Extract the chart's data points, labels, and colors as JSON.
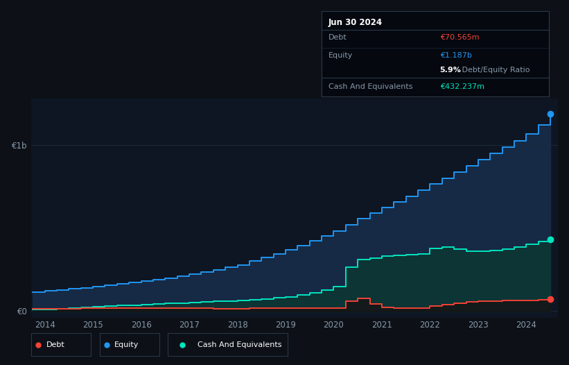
{
  "bg_color": "#0d1117",
  "plot_bg_color": "#0e1623",
  "grid_color": "#1e2d3d",
  "xlabel_color": "#8899aa",
  "y1b_label": "€1b",
  "y0_label": "€0",
  "years": [
    2013.75,
    2014.0,
    2014.25,
    2014.5,
    2014.75,
    2015.0,
    2015.25,
    2015.5,
    2015.75,
    2016.0,
    2016.25,
    2016.5,
    2016.75,
    2017.0,
    2017.25,
    2017.5,
    2017.75,
    2018.0,
    2018.25,
    2018.5,
    2018.75,
    2019.0,
    2019.25,
    2019.5,
    2019.75,
    2020.0,
    2020.25,
    2020.5,
    2020.75,
    2021.0,
    2021.25,
    2021.5,
    2021.75,
    2022.0,
    2022.25,
    2022.5,
    2022.75,
    2023.0,
    2023.25,
    2023.5,
    2023.75,
    2024.0,
    2024.25,
    2024.5
  ],
  "equity": [
    0.115,
    0.12,
    0.125,
    0.132,
    0.14,
    0.148,
    0.155,
    0.162,
    0.17,
    0.178,
    0.188,
    0.198,
    0.21,
    0.222,
    0.235,
    0.248,
    0.262,
    0.278,
    0.3,
    0.322,
    0.345,
    0.368,
    0.395,
    0.422,
    0.452,
    0.482,
    0.52,
    0.555,
    0.59,
    0.625,
    0.658,
    0.692,
    0.728,
    0.765,
    0.8,
    0.838,
    0.875,
    0.91,
    0.948,
    0.988,
    1.025,
    1.065,
    1.12,
    1.187
  ],
  "cash": [
    0.008,
    0.01,
    0.013,
    0.018,
    0.022,
    0.026,
    0.028,
    0.032,
    0.035,
    0.038,
    0.042,
    0.045,
    0.048,
    0.052,
    0.054,
    0.058,
    0.06,
    0.065,
    0.068,
    0.072,
    0.078,
    0.085,
    0.095,
    0.108,
    0.125,
    0.145,
    0.265,
    0.31,
    0.32,
    0.33,
    0.335,
    0.34,
    0.345,
    0.375,
    0.385,
    0.372,
    0.362,
    0.358,
    0.365,
    0.372,
    0.385,
    0.4,
    0.418,
    0.432
  ],
  "debt": [
    0.012,
    0.013,
    0.014,
    0.014,
    0.015,
    0.015,
    0.016,
    0.016,
    0.017,
    0.017,
    0.016,
    0.016,
    0.015,
    0.015,
    0.015,
    0.014,
    0.014,
    0.014,
    0.015,
    0.015,
    0.016,
    0.016,
    0.016,
    0.017,
    0.018,
    0.018,
    0.06,
    0.075,
    0.042,
    0.022,
    0.018,
    0.016,
    0.018,
    0.028,
    0.038,
    0.048,
    0.055,
    0.058,
    0.06,
    0.062,
    0.063,
    0.065,
    0.068,
    0.0706
  ],
  "equity_color": "#2196f3",
  "cash_color": "#00e5c0",
  "debt_color": "#f44336",
  "equity_fill": "#162a45",
  "cash_fill": "#0d3535",
  "tooltip_bg": "#05080f",
  "tooltip_title": "Jun 30 2024",
  "tooltip_debt_label": "Debt",
  "tooltip_debt_value": "€70.565m",
  "tooltip_equity_label": "Equity",
  "tooltip_equity_value": "€1.187b",
  "tooltip_ratio": "5.9%",
  "tooltip_ratio_suffix": " Debt/Equity Ratio",
  "tooltip_cash_label": "Cash And Equivalents",
  "tooltip_cash_value": "€432.237m",
  "legend_labels": [
    "Debt",
    "Equity",
    "Cash And Equivalents"
  ],
  "legend_colors": [
    "#f44336",
    "#2196f3",
    "#00e5c0"
  ],
  "xticks": [
    2014,
    2015,
    2016,
    2017,
    2018,
    2019,
    2020,
    2021,
    2022,
    2023,
    2024
  ],
  "xlim": [
    2013.72,
    2024.65
  ],
  "ylim": [
    -0.04,
    1.28
  ]
}
